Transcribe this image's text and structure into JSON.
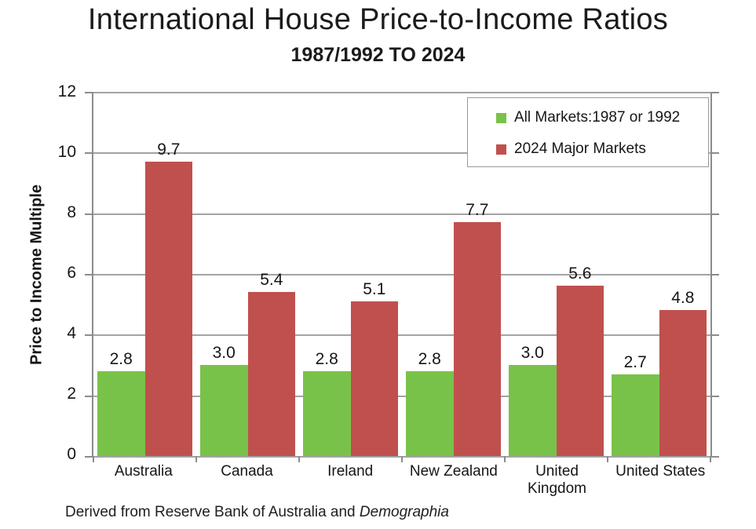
{
  "chart_data": {
    "type": "bar",
    "title": "International House Price-to-Income Ratios",
    "subtitle": "1987/1992 TO 2024",
    "categories": [
      "Australia",
      "Canada",
      "Ireland",
      "New Zealand",
      "United Kingdom",
      "United States"
    ],
    "series": [
      {
        "name": "All Markets:1987 or 1992",
        "color": "#79C24A",
        "values": [
          2.8,
          3.0,
          2.8,
          2.8,
          3.0,
          2.7
        ]
      },
      {
        "name": "2024 Major Markets",
        "color": "#C0504D",
        "values": [
          9.7,
          5.4,
          5.1,
          7.7,
          5.6,
          4.8
        ]
      }
    ],
    "xlabel": "",
    "ylabel": "Price to Income Multiple",
    "ylim": [
      0,
      12
    ],
    "ytick_step": 2,
    "grid": true,
    "value_labels": true,
    "legend_position": "top-right",
    "source_note": "Derived from Reserve Bank of Australia and Demographia"
  },
  "source": {
    "prefix": "Derived from Reserve Bank of Australia and ",
    "italic": "Demographia"
  },
  "colors": {
    "green": "#79C24A",
    "red": "#C0504D",
    "gridline": "#A3A3A3",
    "axis": "#8C8C8C",
    "text": "#1B1B1B"
  }
}
